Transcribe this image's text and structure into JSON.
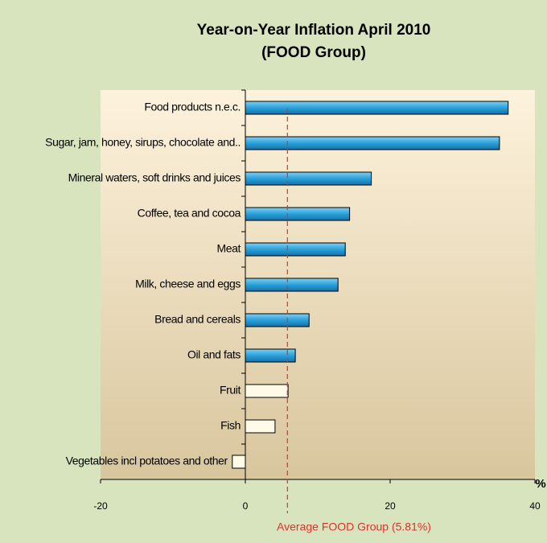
{
  "chart_data": {
    "type": "bar",
    "orientation": "horizontal",
    "title": "Year-on-Year Inflation April 2010",
    "subtitle": "(FOOD Group)",
    "xlabel": "%",
    "categories": [
      "Food products n.e.c.",
      "Sugar, jam, honey, sirups, chocolate and..",
      "Mineral waters, soft drinks and juices",
      "Coffee, tea and cocoa",
      "Meat",
      "Milk, cheese and eggs",
      "Bread and cereals",
      "Oil and fats",
      "Fruit",
      "Fish",
      "Vegetables incl potatoes and other"
    ],
    "values": [
      36.3,
      35.1,
      17.4,
      14.4,
      13.8,
      12.8,
      8.8,
      6.9,
      5.9,
      4.1,
      -1.8
    ],
    "colors": [
      "#2aa0d8",
      "#2aa0d8",
      "#2aa0d8",
      "#2aa0d8",
      "#2aa0d8",
      "#2aa0d8",
      "#2aa0d8",
      "#2aa0d8",
      "#fffbe8",
      "#fffbe8",
      "#fffbe8"
    ],
    "average": {
      "value": 5.81,
      "label": "Average FOOD Group (5.81%)",
      "color": "#e03030"
    },
    "xlim": [
      -20,
      40
    ],
    "xticks": [
      -20,
      0,
      20,
      40
    ]
  }
}
